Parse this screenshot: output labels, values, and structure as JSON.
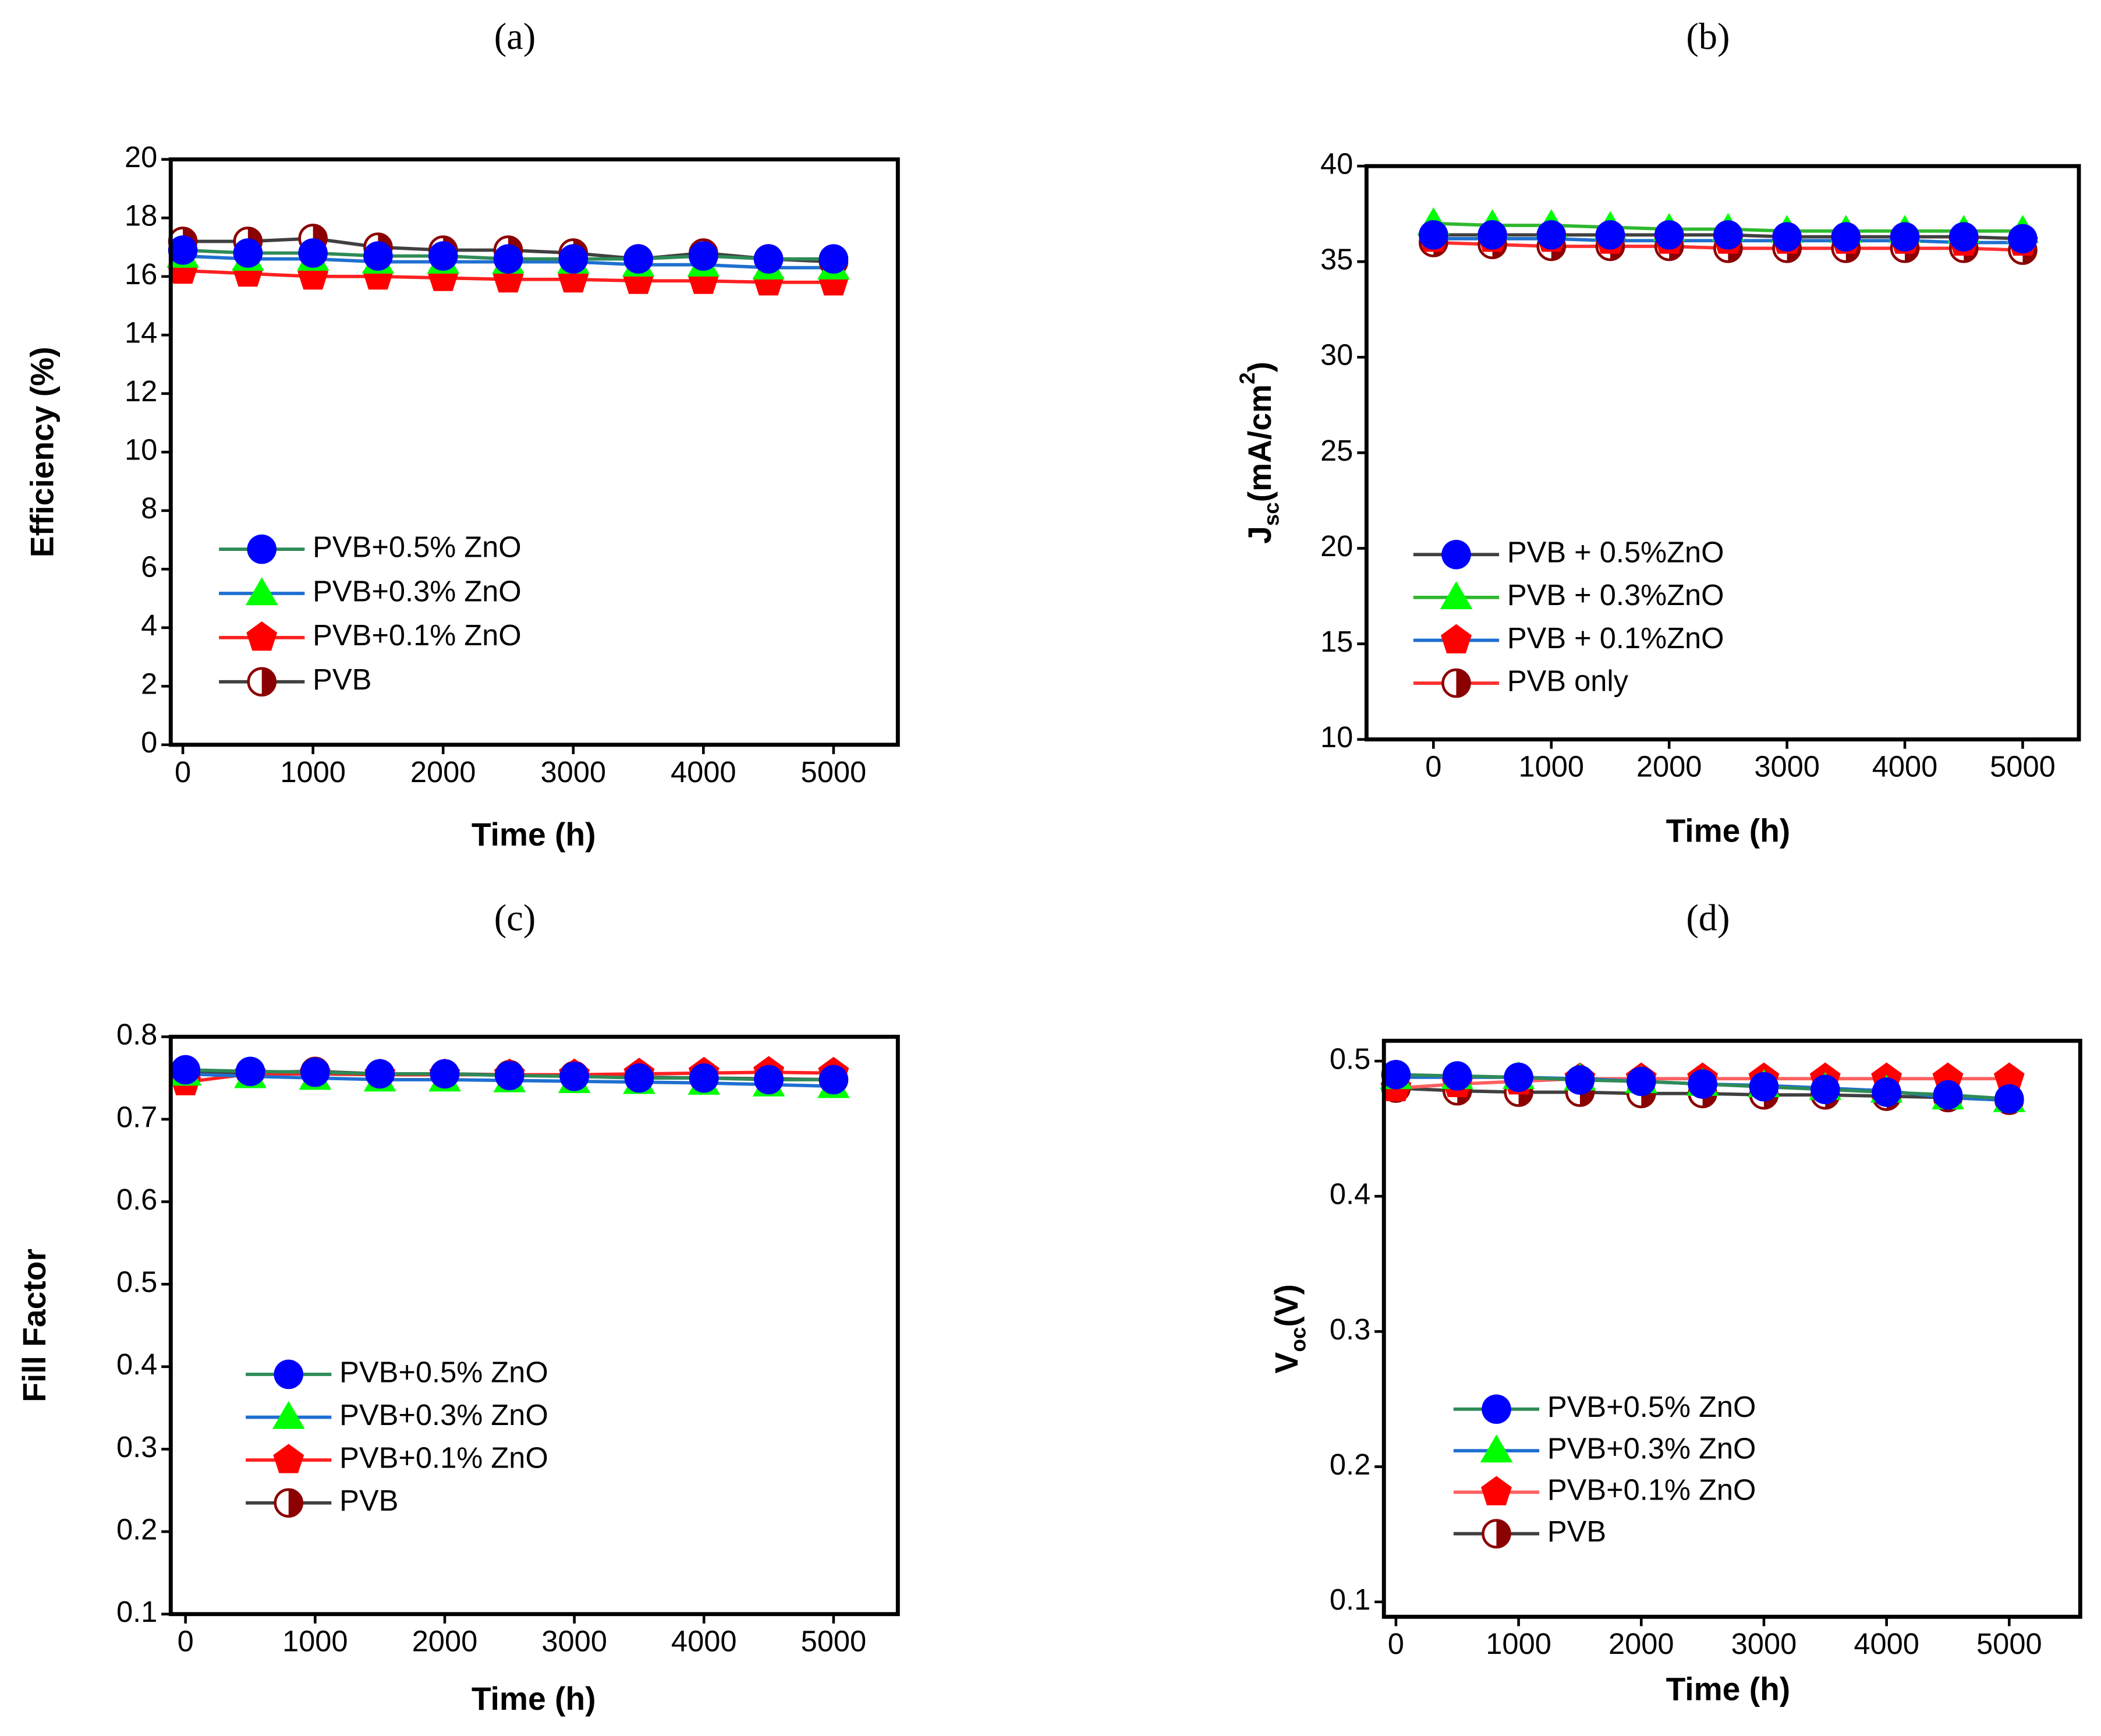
{
  "chart_data": [
    {
      "type": "line",
      "title": "(a)",
      "xlabel": "Time (h)",
      "ylabel": "Efficiency (%)",
      "x": [
        0,
        500,
        1000,
        1500,
        2000,
        2500,
        3000,
        3500,
        4000,
        4500,
        5000
      ],
      "xlim": [
        -93,
        5494
      ],
      "xticks": [
        0,
        1000,
        2000,
        3000,
        4000,
        5000
      ],
      "ylim": [
        0,
        20
      ],
      "yticks": [
        0,
        2,
        4,
        6,
        8,
        10,
        12,
        14,
        16,
        18,
        20
      ],
      "series": [
        {
          "name": "PVB+0.5% ZnO",
          "color": "#2e8b57",
          "marker": "circle",
          "marker_color": "#0000ff",
          "values": [
            16.9,
            16.8,
            16.8,
            16.7,
            16.7,
            16.6,
            16.6,
            16.6,
            16.7,
            16.6,
            16.6
          ]
        },
        {
          "name": "PVB+0.3% ZnO",
          "color": "#1f6fd1",
          "marker": "triangle",
          "marker_color": "#00ff00",
          "values": [
            16.7,
            16.6,
            16.6,
            16.5,
            16.5,
            16.5,
            16.5,
            16.4,
            16.4,
            16.3,
            16.3
          ]
        },
        {
          "name": "PVB+0.1% ZnO",
          "color": "#ff2020",
          "marker": "pentagon",
          "marker_color": "#ff0000",
          "values": [
            16.2,
            16.1,
            16.0,
            16.0,
            15.95,
            15.9,
            15.9,
            15.85,
            15.85,
            15.8,
            15.8
          ]
        },
        {
          "name": "PVB",
          "color": "#404040",
          "marker": "half",
          "marker_color": "#8b0000",
          "values": [
            17.2,
            17.2,
            17.3,
            17.0,
            16.9,
            16.9,
            16.8,
            16.6,
            16.8,
            16.6,
            16.5
          ]
        }
      ]
    },
    {
      "type": "line",
      "title": "(b)",
      "xlabel": "Time (h)",
      "ylabel_parts": [
        {
          "text": "J"
        },
        {
          "text": "sc",
          "shift": "sub"
        },
        {
          "text": "(mA/cm"
        },
        {
          "text": "2",
          "shift": "super"
        },
        {
          "text": ")"
        }
      ],
      "x": [
        0,
        500,
        1000,
        1500,
        2000,
        2500,
        3000,
        3500,
        4000,
        4500,
        5000
      ],
      "xlim": [
        -568,
        5477
      ],
      "xticks": [
        0,
        1000,
        2000,
        3000,
        4000,
        5000
      ],
      "ylim": [
        10,
        40
      ],
      "yticks": [
        10,
        15,
        20,
        25,
        30,
        35,
        40
      ],
      "series": [
        {
          "name": "PVB + 0.5%ZnO",
          "color": "#404040",
          "marker": "circle",
          "marker_color": "#0000ff",
          "values": [
            36.4,
            36.4,
            36.4,
            36.4,
            36.4,
            36.4,
            36.3,
            36.3,
            36.3,
            36.3,
            36.2
          ]
        },
        {
          "name": "PVB + 0.3%ZnO",
          "color": "#2eb82e",
          "marker": "triangle",
          "marker_color": "#00ff00",
          "values": [
            37.0,
            36.9,
            36.9,
            36.8,
            36.7,
            36.7,
            36.6,
            36.6,
            36.6,
            36.6,
            36.6
          ]
        },
        {
          "name": "PVB + 0.1%ZnO",
          "color": "#1f6fd1",
          "marker": "pentagon",
          "marker_color": "#ff0000",
          "values": [
            36.2,
            36.2,
            36.2,
            36.1,
            36.1,
            36.1,
            36.1,
            36.1,
            36.1,
            36.0,
            36.0
          ]
        },
        {
          "name": "PVB only",
          "color": "#ff3030",
          "marker": "half",
          "marker_color": "#8b0000",
          "values": [
            36.0,
            35.9,
            35.8,
            35.8,
            35.8,
            35.7,
            35.7,
            35.7,
            35.7,
            35.7,
            35.6
          ]
        }
      ]
    },
    {
      "type": "line",
      "title": "(c)",
      "xlabel": "Time (h)",
      "ylabel": "Fill Factor",
      "x": [
        0,
        500,
        1000,
        1500,
        2000,
        2500,
        3000,
        3500,
        4000,
        4500,
        5000
      ],
      "xlim": [
        -114,
        5496
      ],
      "xticks": [
        0,
        1000,
        2000,
        3000,
        4000,
        5000
      ],
      "ylim": [
        0.1,
        0.8
      ],
      "yticks": [
        0.1,
        0.2,
        0.3,
        0.4,
        0.5,
        0.6,
        0.7,
        0.8
      ],
      "series": [
        {
          "name": "PVB+0.5% ZnO",
          "color": "#2e8b57",
          "marker": "circle",
          "marker_color": "#0000ff",
          "values": [
            0.76,
            0.758,
            0.757,
            0.755,
            0.755,
            0.753,
            0.752,
            0.75,
            0.75,
            0.748,
            0.748
          ]
        },
        {
          "name": "PVB+0.3% ZnO",
          "color": "#1f6fd1",
          "marker": "triangle",
          "marker_color": "#00ff00",
          "values": [
            0.755,
            0.752,
            0.75,
            0.748,
            0.748,
            0.747,
            0.746,
            0.745,
            0.744,
            0.742,
            0.74
          ]
        },
        {
          "name": "PVB+0.1% ZnO",
          "color": "#ff2020",
          "marker": "pentagon",
          "marker_color": "#ff0000",
          "values": [
            0.745,
            0.755,
            0.755,
            0.754,
            0.754,
            0.754,
            0.754,
            0.755,
            0.756,
            0.757,
            0.756
          ]
        },
        {
          "name": "PVB",
          "color": "#404040",
          "marker": "half",
          "marker_color": "#8b0000",
          "values": [
            0.755,
            0.757,
            0.758,
            0.755,
            0.755,
            0.754,
            0.753,
            0.751,
            0.75,
            0.749,
            0.748
          ]
        }
      ]
    },
    {
      "type": "line",
      "title": "(d)",
      "xlabel": "Time (h)",
      "ylabel_parts": [
        {
          "text": "V"
        },
        {
          "text": "oc",
          "shift": "sub"
        },
        {
          "text": "(V)"
        }
      ],
      "x": [
        0,
        500,
        1000,
        1500,
        2000,
        2500,
        3000,
        3500,
        4000,
        4500,
        5000
      ],
      "xlim": [
        -98,
        5579
      ],
      "xticks": [
        0,
        1000,
        2000,
        3000,
        4000,
        5000
      ],
      "ylim": [
        0.089,
        0.515
      ],
      "yticks": [
        0.1,
        0.2,
        0.3,
        0.4,
        0.5
      ],
      "series": [
        {
          "name": "PVB+0.5% ZnO",
          "color": "#2e8b57",
          "marker": "circle",
          "marker_color": "#0000ff",
          "values": [
            0.49,
            0.489,
            0.488,
            0.486,
            0.485,
            0.483,
            0.481,
            0.479,
            0.477,
            0.475,
            0.472
          ]
        },
        {
          "name": "PVB+0.3% ZnO",
          "color": "#1f6fd1",
          "marker": "triangle",
          "marker_color": "#00ff00",
          "values": [
            0.488,
            0.488,
            0.488,
            0.487,
            0.485,
            0.483,
            0.482,
            0.48,
            0.478,
            0.473,
            0.471
          ]
        },
        {
          "name": "PVB+0.1% ZnO",
          "color": "#ff6060",
          "marker": "pentagon",
          "marker_color": "#ff0000",
          "values": [
            0.48,
            0.483,
            0.485,
            0.487,
            0.487,
            0.487,
            0.487,
            0.487,
            0.487,
            0.487,
            0.487
          ]
        },
        {
          "name": "PVB",
          "color": "#404040",
          "marker": "half",
          "marker_color": "#8b0000",
          "values": [
            0.48,
            0.478,
            0.477,
            0.477,
            0.476,
            0.476,
            0.475,
            0.475,
            0.474,
            0.473,
            0.471
          ]
        }
      ]
    }
  ]
}
